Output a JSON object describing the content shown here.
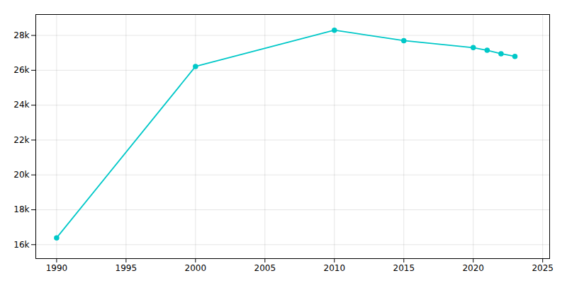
{
  "chart_data": {
    "type": "line",
    "x": [
      1990,
      2000,
      2010,
      2015,
      2020,
      2021,
      2022,
      2023
    ],
    "values": [
      16390,
      26220,
      28300,
      27700,
      27300,
      27150,
      26950,
      26800
    ],
    "color": "#00C8C8",
    "marker": "circle",
    "xlim": [
      1988.5,
      2025.5
    ],
    "xticks": [
      1990,
      1995,
      2000,
      2005,
      2010,
      2015,
      2020,
      2025
    ],
    "ylim": [
      15200,
      29200
    ],
    "yticks": [
      {
        "value": 16000,
        "label": "16k"
      },
      {
        "value": 18000,
        "label": "18k"
      },
      {
        "value": 20000,
        "label": "20k"
      },
      {
        "value": 22000,
        "label": "22k"
      },
      {
        "value": 24000,
        "label": "24k"
      },
      {
        "value": 26000,
        "label": "26k"
      },
      {
        "value": 28000,
        "label": "28k"
      }
    ],
    "grid": true
  }
}
